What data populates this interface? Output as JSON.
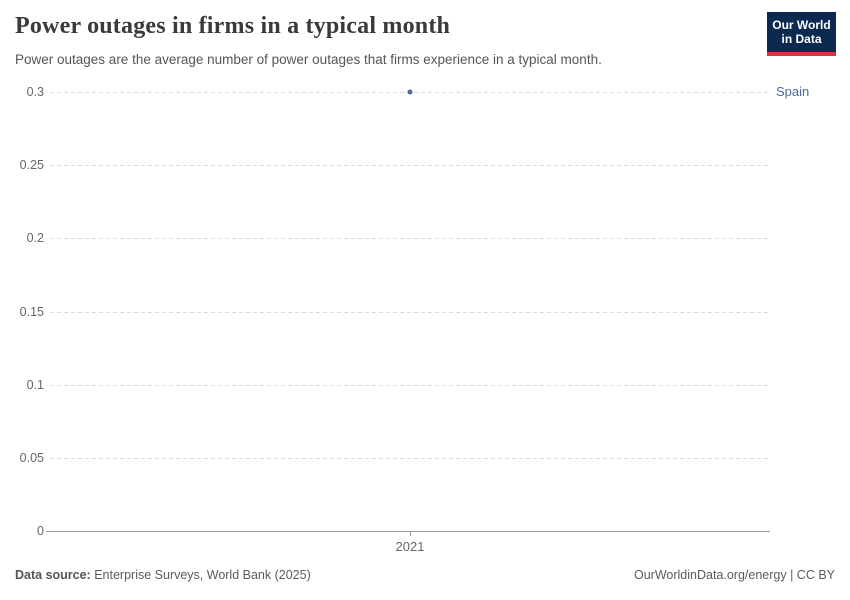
{
  "header": {
    "title": "Power outages in firms in a typical month",
    "subtitle": "Power outages are the average number of power outages that firms experience in a typical month.",
    "logo": {
      "line1": "Our World",
      "line2": "in Data"
    }
  },
  "chart_data": {
    "type": "scatter",
    "title": "Power outages in firms in a typical month",
    "xlabel": "",
    "ylabel": "",
    "ylim": [
      0,
      0.3
    ],
    "yticks": [
      0,
      0.05,
      0.1,
      0.15,
      0.2,
      0.25,
      0.3
    ],
    "ytick_labels": [
      "0",
      "0.05",
      "0.1",
      "0.15",
      "0.2",
      "0.25",
      "0.3"
    ],
    "xticks": [
      2021
    ],
    "xtick_labels": [
      "2021"
    ],
    "grid": "horizontal-dashed",
    "legend_position": "right-of-point",
    "series": [
      {
        "name": "Spain",
        "color": "#4c6a9c",
        "points": [
          {
            "x": 2021,
            "y": 0.3
          }
        ]
      }
    ]
  },
  "footer": {
    "data_source_label": "Data source:",
    "data_source_value": " Enterprise Surveys, World Bank (2025)",
    "attribution": "OurWorldinData.org/energy | CC BY"
  },
  "colors": {
    "accent_blue": "#4c6a9c",
    "logo_navy": "#0c2a50",
    "logo_red": "#d8343f",
    "gridline": "#dcdcdc",
    "axis": "#999999",
    "title_text": "#3a3a3a",
    "muted_text": "#5b5b5b"
  }
}
